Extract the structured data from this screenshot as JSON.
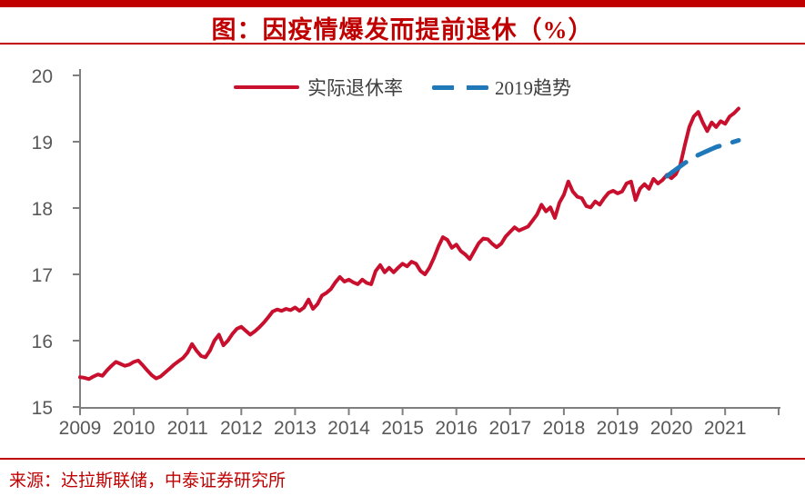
{
  "title": "图：因疫情爆发而提前退休（%）",
  "source": "来源：达拉斯联储，中泰证券研究所",
  "colors": {
    "accent_red": "#C00000",
    "series_red": "#C8102E",
    "series_blue": "#1F78B7",
    "axis_line": "#7F7F7F",
    "axis_label": "#595959",
    "legend_text": "#3F3F3F"
  },
  "legend": [
    {
      "label": "实际退休率",
      "style": "solid",
      "color": "#C8102E"
    },
    {
      "label": "2019趋势",
      "style": "dashed",
      "color": "#1F78B7"
    }
  ],
  "chart_data": {
    "type": "line",
    "title": "图：因疫情爆发而提前退休（%）",
    "xlabel": "",
    "ylabel": "",
    "ylim": [
      15,
      20
    ],
    "xlim": [
      2009,
      2022
    ],
    "grid": false,
    "legend_position": "top-center",
    "y_ticks": [
      15,
      16,
      17,
      18,
      19,
      20
    ],
    "x_ticks": [
      2009,
      2010,
      2011,
      2012,
      2013,
      2014,
      2015,
      2016,
      2017,
      2018,
      2019,
      2020,
      2021
    ],
    "series": [
      {
        "name": "实际退休率",
        "color": "#C8102E",
        "style": "solid",
        "x_start": 2009.0,
        "x_step": 0.0833333,
        "values": [
          15.45,
          15.44,
          15.42,
          15.46,
          15.49,
          15.47,
          15.55,
          15.62,
          15.68,
          15.65,
          15.62,
          15.64,
          15.68,
          15.7,
          15.63,
          15.55,
          15.48,
          15.43,
          15.46,
          15.52,
          15.58,
          15.64,
          15.69,
          15.74,
          15.82,
          15.95,
          15.85,
          15.77,
          15.75,
          15.85,
          16.0,
          16.09,
          15.93,
          16.0,
          16.1,
          16.18,
          16.21,
          16.15,
          16.09,
          16.14,
          16.2,
          16.27,
          16.35,
          16.44,
          16.47,
          16.45,
          16.48,
          16.46,
          16.5,
          16.45,
          16.5,
          16.62,
          16.48,
          16.55,
          16.68,
          16.72,
          16.78,
          16.88,
          16.96,
          16.89,
          16.92,
          16.88,
          16.85,
          16.92,
          16.87,
          16.85,
          17.05,
          17.14,
          17.03,
          17.1,
          17.03,
          17.1,
          17.16,
          17.12,
          17.19,
          17.16,
          17.05,
          17.0,
          17.1,
          17.25,
          17.42,
          17.56,
          17.52,
          17.4,
          17.45,
          17.35,
          17.3,
          17.23,
          17.35,
          17.47,
          17.54,
          17.53,
          17.46,
          17.41,
          17.46,
          17.57,
          17.64,
          17.71,
          17.66,
          17.69,
          17.72,
          17.81,
          17.9,
          18.05,
          17.95,
          18.01,
          17.85,
          18.08,
          18.2,
          18.4,
          18.25,
          18.17,
          18.15,
          18.03,
          18.01,
          18.1,
          18.05,
          18.15,
          18.23,
          18.26,
          18.22,
          18.25,
          18.37,
          18.4,
          18.12,
          18.29,
          18.36,
          18.29,
          18.44,
          18.37,
          18.42,
          18.5,
          18.45,
          18.51,
          18.65,
          18.95,
          19.22,
          19.38,
          19.45,
          19.29,
          19.16,
          19.29,
          19.22,
          19.31,
          19.27,
          19.38,
          19.43,
          19.5
        ]
      },
      {
        "name": "2019趋势",
        "color": "#1F78B7",
        "style": "dashed",
        "x_start": 2019.9167,
        "x_step": 0.0833333,
        "values": [
          18.48,
          18.53,
          18.58,
          18.63,
          18.68,
          18.72,
          18.76,
          18.8,
          18.83,
          18.86,
          18.89,
          18.92,
          18.94,
          18.96,
          18.98,
          19.0,
          19.02
        ]
      }
    ]
  }
}
